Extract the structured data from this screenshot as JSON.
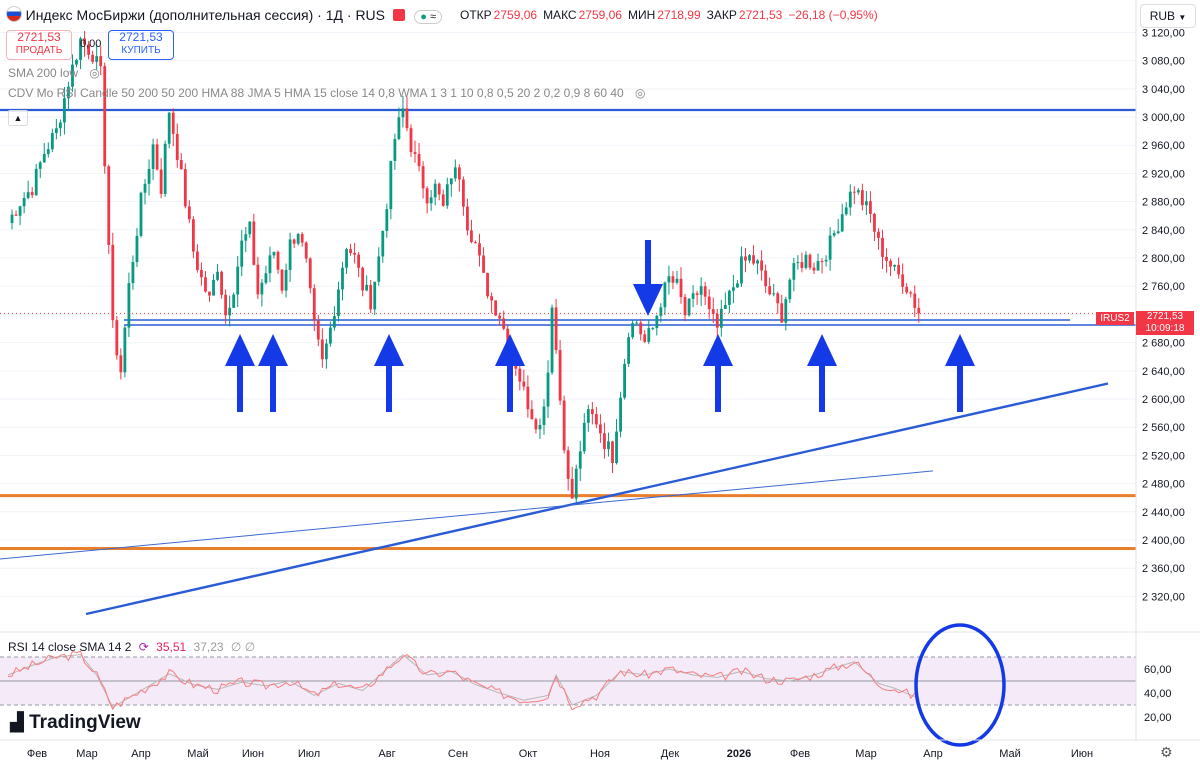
{
  "header": {
    "title": "Индекс МосБиржи (дополнительная сессия) · 1Д · RUS",
    "ohlc": [
      {
        "label": "ОТКР",
        "value": "2759,06"
      },
      {
        "label": "МАКС",
        "value": "2759,06"
      },
      {
        "label": "МИН",
        "value": "2718,99"
      },
      {
        "label": "ЗАКР",
        "value": "2721,53"
      }
    ],
    "change": "−26,18 (−0,95%)",
    "sell_price": "2721,53",
    "sell_label": "ПРОДАТЬ",
    "spread": "0,00",
    "buy_price": "2721,53",
    "buy_label": "КУПИТЬ",
    "currency": "RUB"
  },
  "indicators": {
    "sma": "SMA 200 low",
    "cdv": "CDV Mo RSI Candle 50 200 50 200 HMA 88 JMA 5 HMA 15 close 14 0,8 WMA 1 3 1 10 0,8 0,5 20 2 0,2 0,9 8 60 40",
    "rsi_label": "RSI 14 close SMA 14 2",
    "rsi_value": "35,51",
    "rsi_sma_value": "37,23",
    "rsi_extra": "∅ ∅"
  },
  "price_tag": {
    "symbol": "IRUS2",
    "price": "2721,53",
    "timer": "10:09:18"
  },
  "logo": "TradingView",
  "colors": {
    "up": "#089981",
    "down": "#f23645",
    "blue": "#2a5bd7",
    "arrow": "#1439e6",
    "orange": "#e97e2b",
    "rsi": "#f77c80",
    "rsi_sma": "#b8b8b8",
    "rsi_band": "#f3e5f5"
  },
  "chart_data": {
    "type": "candlestick",
    "y_ticks": [
      3120,
      3080,
      3040,
      3000,
      2960,
      2920,
      2880,
      2840,
      2800,
      2760,
      2720,
      2680,
      2640,
      2600,
      2560,
      2520,
      2480,
      2440,
      2400,
      2360,
      2320
    ],
    "y_tick_labels": [
      "3 120,00",
      "3 080,00",
      "3 040,00",
      "3 000,00",
      "2 960,00",
      "2 920,00",
      "2 880,00",
      "2 840,00",
      "2 800,00",
      "2 760,00",
      "2 720,00",
      "2 680,00",
      "2 640,00",
      "2 600,00",
      "2 560,00",
      "2 520,00",
      "2 480,00",
      "2 440,00",
      "2 400,00",
      "2 360,00",
      "2 320,00"
    ],
    "x_labels": [
      "Фев",
      "Мар",
      "Апр",
      "Май",
      "Июн",
      "Июл",
      "Авг",
      "Сен",
      "Окт",
      "Ноя",
      "Дек",
      "2026",
      "Фев",
      "Мар",
      "Апр",
      "Май",
      "Июн"
    ],
    "close_path": [
      [
        0,
        2850
      ],
      [
        3,
        2880
      ],
      [
        6,
        2900
      ],
      [
        9,
        2950
      ],
      [
        12,
        2980
      ],
      [
        15,
        3050
      ],
      [
        18,
        3110
      ],
      [
        21,
        3090
      ],
      [
        23,
        3060
      ],
      [
        26,
        2700
      ],
      [
        28,
        2640
      ],
      [
        30,
        2760
      ],
      [
        33,
        2880
      ],
      [
        36,
        2960
      ],
      [
        38,
        2900
      ],
      [
        40,
        3010
      ],
      [
        42,
        2950
      ],
      [
        44,
        2880
      ],
      [
        46,
        2810
      ],
      [
        48,
        2770
      ],
      [
        50,
        2740
      ],
      [
        52,
        2790
      ],
      [
        54,
        2720
      ],
      [
        56,
        2760
      ],
      [
        58,
        2820
      ],
      [
        60,
        2840
      ],
      [
        62,
        2750
      ],
      [
        64,
        2780
      ],
      [
        66,
        2810
      ],
      [
        68,
        2760
      ],
      [
        70,
        2820
      ],
      [
        72,
        2840
      ],
      [
        74,
        2790
      ],
      [
        76,
        2700
      ],
      [
        78,
        2650
      ],
      [
        80,
        2700
      ],
      [
        82,
        2760
      ],
      [
        84,
        2820
      ],
      [
        86,
        2800
      ],
      [
        88,
        2760
      ],
      [
        90,
        2740
      ],
      [
        92,
        2800
      ],
      [
        94,
        2880
      ],
      [
        96,
        2970
      ],
      [
        98,
        3010
      ],
      [
        100,
        2960
      ],
      [
        102,
        2920
      ],
      [
        104,
        2890
      ],
      [
        106,
        2900
      ],
      [
        108,
        2870
      ],
      [
        110,
        2920
      ],
      [
        112,
        2920
      ],
      [
        114,
        2850
      ],
      [
        116,
        2820
      ],
      [
        118,
        2770
      ],
      [
        120,
        2740
      ],
      [
        122,
        2720
      ],
      [
        124,
        2680
      ],
      [
        126,
        2650
      ],
      [
        128,
        2610
      ],
      [
        130,
        2580
      ],
      [
        132,
        2560
      ],
      [
        134,
        2640
      ],
      [
        135,
        2740
      ],
      [
        137,
        2600
      ],
      [
        139,
        2480
      ],
      [
        140,
        2460
      ],
      [
        142,
        2530
      ],
      [
        144,
        2580
      ],
      [
        146,
        2570
      ],
      [
        148,
        2540
      ],
      [
        150,
        2520
      ],
      [
        152,
        2610
      ],
      [
        154,
        2700
      ],
      [
        156,
        2710
      ],
      [
        158,
        2680
      ],
      [
        160,
        2700
      ],
      [
        162,
        2740
      ],
      [
        164,
        2770
      ],
      [
        166,
        2760
      ],
      [
        168,
        2720
      ],
      [
        170,
        2740
      ],
      [
        172,
        2760
      ],
      [
        174,
        2720
      ],
      [
        176,
        2700
      ],
      [
        178,
        2730
      ],
      [
        180,
        2760
      ],
      [
        182,
        2790
      ],
      [
        184,
        2800
      ],
      [
        186,
        2790
      ],
      [
        188,
        2760
      ],
      [
        190,
        2740
      ],
      [
        192,
        2720
      ],
      [
        194,
        2770
      ],
      [
        196,
        2790
      ],
      [
        198,
        2800
      ],
      [
        200,
        2790
      ],
      [
        202,
        2800
      ],
      [
        204,
        2820
      ],
      [
        206,
        2850
      ],
      [
        208,
        2880
      ],
      [
        210,
        2900
      ],
      [
        212,
        2880
      ],
      [
        214,
        2860
      ],
      [
        216,
        2820
      ],
      [
        218,
        2800
      ],
      [
        220,
        2780
      ],
      [
        222,
        2770
      ],
      [
        224,
        2750
      ],
      [
        226,
        2721.53
      ]
    ],
    "rsi_ticks": [
      60,
      40,
      20
    ],
    "rsi_path": [
      [
        0,
        55
      ],
      [
        6,
        63
      ],
      [
        12,
        70
      ],
      [
        18,
        72
      ],
      [
        22,
        55
      ],
      [
        26,
        28
      ],
      [
        30,
        36
      ],
      [
        36,
        48
      ],
      [
        40,
        56
      ],
      [
        46,
        47
      ],
      [
        52,
        43
      ],
      [
        58,
        49
      ],
      [
        64,
        46
      ],
      [
        70,
        50
      ],
      [
        76,
        38
      ],
      [
        82,
        48
      ],
      [
        88,
        42
      ],
      [
        94,
        60
      ],
      [
        98,
        72
      ],
      [
        104,
        55
      ],
      [
        110,
        58
      ],
      [
        116,
        47
      ],
      [
        122,
        40
      ],
      [
        128,
        34
      ],
      [
        134,
        38
      ],
      [
        136,
        55
      ],
      [
        140,
        30
      ],
      [
        146,
        38
      ],
      [
        152,
        58
      ],
      [
        158,
        55
      ],
      [
        164,
        60
      ],
      [
        170,
        55
      ],
      [
        176,
        53
      ],
      [
        182,
        58
      ],
      [
        188,
        52
      ],
      [
        194,
        50
      ],
      [
        200,
        55
      ],
      [
        206,
        62
      ],
      [
        210,
        66
      ],
      [
        216,
        48
      ],
      [
        220,
        44
      ],
      [
        226,
        35.51
      ]
    ],
    "levels": [
      {
        "price": 3010,
        "color": "blue"
      },
      {
        "price": 2705,
        "color": "blue"
      },
      {
        "price": 2463,
        "color": "orange"
      },
      {
        "price": 2388,
        "color": "orange"
      }
    ],
    "arrows_up_bars": [
      60,
      68,
      97,
      128,
      180,
      206,
      240
    ],
    "arrow_down_bar": 164
  }
}
